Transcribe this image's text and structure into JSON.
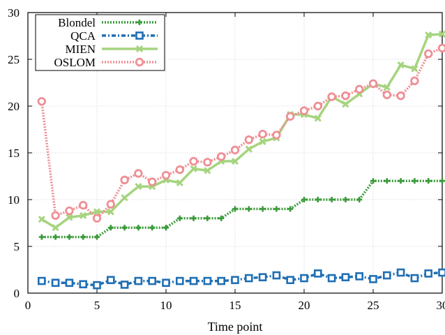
{
  "chart_data": {
    "type": "line",
    "xlabel": "Time point",
    "ylabel": "",
    "xlim": [
      0,
      30
    ],
    "ylim": [
      0,
      30
    ],
    "xticks": [
      0,
      5,
      10,
      15,
      20,
      25,
      30
    ],
    "yticks": [
      0,
      5,
      10,
      15,
      20,
      25,
      30
    ],
    "grid": true,
    "legend_position": "top-left",
    "x": [
      1,
      2,
      3,
      4,
      5,
      6,
      7,
      8,
      9,
      10,
      11,
      12,
      13,
      14,
      15,
      16,
      17,
      18,
      19,
      20,
      21,
      22,
      23,
      24,
      25,
      26,
      27,
      28,
      29,
      30
    ],
    "series": [
      {
        "name": "Blondel",
        "color": "#3a9a3a",
        "marker": "plus",
        "values": [
          6,
          6,
          6,
          6,
          6,
          7,
          7,
          7,
          7,
          7,
          8,
          8,
          8,
          8,
          9,
          9,
          9,
          9,
          9,
          10,
          10,
          10,
          10,
          10,
          12,
          12,
          12,
          12,
          12,
          12
        ]
      },
      {
        "name": "QCA",
        "color": "#1f6fb4",
        "marker": "square",
        "values": [
          1.3,
          1.1,
          1.1,
          0.95,
          0.85,
          1.4,
          0.9,
          1.3,
          1.3,
          1.1,
          1.3,
          1.3,
          1.3,
          1.3,
          1.4,
          1.6,
          1.7,
          1.9,
          1.4,
          1.6,
          2.1,
          1.6,
          1.7,
          1.8,
          1.5,
          1.9,
          2.2,
          1.6,
          2.1,
          2.2
        ]
      },
      {
        "name": "MIEN",
        "color": "#a6d47e",
        "marker": "x",
        "values": [
          7.9,
          7.0,
          8.1,
          8.3,
          8.7,
          8.7,
          10.2,
          11.4,
          11.4,
          12.1,
          11.8,
          13.3,
          13.1,
          14.1,
          14.1,
          15.4,
          16.2,
          16.6,
          19.1,
          19.1,
          18.7,
          21.0,
          20.2,
          21.3,
          22.4,
          22.0,
          24.4,
          24.0,
          27.6,
          27.7
        ]
      },
      {
        "name": "OSLOM",
        "color": "#ee8f95",
        "marker": "circle",
        "values": [
          20.5,
          8.3,
          8.8,
          9.4,
          8.0,
          9.5,
          12.1,
          12.8,
          11.9,
          12.6,
          13.2,
          14.1,
          14.0,
          14.6,
          15.3,
          16.4,
          17.0,
          16.9,
          18.9,
          19.5,
          20.0,
          21.0,
          21.1,
          21.8,
          22.4,
          21.2,
          21.1,
          22.7,
          25.6,
          26.2
        ]
      }
    ]
  }
}
